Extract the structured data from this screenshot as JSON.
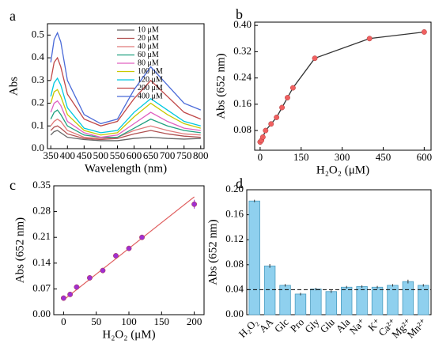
{
  "chart_data": [
    {
      "type": "line",
      "label": "a",
      "xlabel": "Wavelength (nm)",
      "ylabel": "Abs",
      "x": [
        350,
        360,
        370,
        380,
        400,
        450,
        500,
        550,
        600,
        650,
        700,
        750,
        800
      ],
      "xlim": [
        340,
        810
      ],
      "xticks": [
        350,
        400,
        450,
        500,
        550,
        600,
        650,
        700,
        750,
        800
      ],
      "ylim": [
        0,
        0.55
      ],
      "yticks": [
        {
          "value": 0,
          "label": "0.0"
        },
        0.1,
        0.2,
        0.3,
        0.4,
        0.5
      ],
      "legend": "upper right",
      "series": [
        {
          "name": "10 μM",
          "color": "#666666",
          "values": [
            0.06,
            0.075,
            0.08,
            0.07,
            0.05,
            0.04,
            0.035,
            0.035,
            0.045,
            0.05,
            0.045,
            0.042,
            0.045
          ]
        },
        {
          "name": "20 μM",
          "color": "#b05050",
          "values": [
            0.08,
            0.095,
            0.1,
            0.09,
            0.065,
            0.045,
            0.04,
            0.045,
            0.065,
            0.08,
            0.065,
            0.055,
            0.05
          ]
        },
        {
          "name": "40 μM",
          "color": "#e07a7a",
          "values": [
            0.1,
            0.12,
            0.13,
            0.12,
            0.08,
            0.05,
            0.045,
            0.05,
            0.08,
            0.1,
            0.08,
            0.065,
            0.06
          ]
        },
        {
          "name": "60 μM",
          "color": "#20a080",
          "values": [
            0.13,
            0.16,
            0.17,
            0.15,
            0.1,
            0.06,
            0.05,
            0.05,
            0.09,
            0.13,
            0.1,
            0.08,
            0.07
          ]
        },
        {
          "name": "80 μM",
          "color": "#e060c0",
          "values": [
            0.16,
            0.2,
            0.21,
            0.19,
            0.12,
            0.07,
            0.05,
            0.06,
            0.11,
            0.16,
            0.12,
            0.09,
            0.08
          ]
        },
        {
          "name": "100 μM",
          "color": "#c8c800",
          "values": [
            0.2,
            0.25,
            0.26,
            0.23,
            0.15,
            0.08,
            0.06,
            0.07,
            0.14,
            0.2,
            0.15,
            0.11,
            0.09
          ]
        },
        {
          "name": "120 μM",
          "color": "#00c8e0",
          "values": [
            0.23,
            0.29,
            0.31,
            0.28,
            0.18,
            0.09,
            0.07,
            0.08,
            0.16,
            0.22,
            0.17,
            0.12,
            0.1
          ]
        },
        {
          "name": "200 μM",
          "color": "#c04848",
          "values": [
            0.3,
            0.38,
            0.4,
            0.36,
            0.24,
            0.13,
            0.1,
            0.12,
            0.22,
            0.3,
            0.23,
            0.16,
            0.13
          ]
        },
        {
          "name": "400 μM",
          "color": "#4a6ad8",
          "values": [
            0.38,
            0.48,
            0.51,
            0.47,
            0.3,
            0.15,
            0.11,
            0.13,
            0.26,
            0.36,
            0.28,
            0.2,
            0.17
          ]
        }
      ]
    },
    {
      "type": "line",
      "label": "b",
      "xlabel": "H₂O₂ (μM)",
      "ylabel": "Abs (652 nm)",
      "x": [
        0,
        5,
        10,
        20,
        40,
        60,
        80,
        100,
        120,
        200,
        400,
        600
      ],
      "xlim": [
        -20,
        625
      ],
      "xticks": [
        0,
        150,
        300,
        450,
        600
      ],
      "ylim": [
        0.02,
        0.41
      ],
      "yticks": [
        0.08,
        0.16,
        0.24,
        0.32,
        {
          "value": 0.4,
          "label": "0.40"
        }
      ],
      "series": [
        {
          "color": "#333333",
          "marker_color": "#f06060",
          "values": [
            0.045,
            0.05,
            0.06,
            0.08,
            0.1,
            0.12,
            0.15,
            0.18,
            0.21,
            0.3,
            0.36,
            0.38
          ],
          "errors": [
            0.004,
            0.004,
            0.004,
            0.004,
            0.005,
            0.004,
            0.005,
            0.005,
            0.005,
            0.006,
            0.006,
            0.005
          ]
        }
      ]
    },
    {
      "type": "scatter",
      "label": "c",
      "xlabel": "H₂O₂ (μM)",
      "ylabel": "Abs (652 nm)",
      "x": [
        0,
        10,
        20,
        40,
        60,
        80,
        100,
        120,
        200
      ],
      "xlim": [
        -15,
        215
      ],
      "xticks": [
        0,
        50,
        100,
        150,
        200
      ],
      "ylim": [
        0,
        0.35
      ],
      "yticks": [
        {
          "value": 0,
          "label": "0.00"
        },
        0.07,
        0.14,
        0.21,
        0.28,
        0.35
      ],
      "series": [
        {
          "color": "#a030d0",
          "values": [
            0.045,
            0.055,
            0.075,
            0.1,
            0.12,
            0.16,
            0.18,
            0.21,
            0.3
          ],
          "errors": [
            0.003,
            0.003,
            0.004,
            0.004,
            0.004,
            0.005,
            0.005,
            0.006,
            0.012
          ]
        }
      ],
      "fit": {
        "color": "#e06060",
        "x": [
          0,
          200
        ],
        "values": [
          0.04,
          0.32
        ]
      }
    },
    {
      "type": "bar",
      "label": "d",
      "ylabel": "Abs (652 nm)",
      "categories": [
        "H₂O₂",
        "AA",
        "Glc",
        "Pro",
        "Gly",
        "Glu",
        "Ala",
        "Na⁺",
        "K⁺",
        "Ca²⁺",
        "Mg²⁺",
        "Mn²⁺"
      ],
      "values": [
        0.182,
        0.078,
        0.047,
        0.033,
        0.041,
        0.037,
        0.044,
        0.045,
        0.044,
        0.047,
        0.053,
        0.047
      ],
      "errors": [
        0.002,
        0.003,
        0.002,
        0.002,
        0.002,
        0.002,
        0.002,
        0.002,
        0.002,
        0.002,
        0.003,
        0.002
      ],
      "color": "#8fd0ee",
      "edge_color": "#4a9cc0",
      "ylim": [
        0,
        0.2
      ],
      "yticks": [
        {
          "value": 0,
          "label": "0.00"
        },
        0.04,
        0.08,
        0.12,
        0.16,
        {
          "value": 0.2,
          "label": "0.20"
        }
      ],
      "hline": 0.04
    }
  ]
}
